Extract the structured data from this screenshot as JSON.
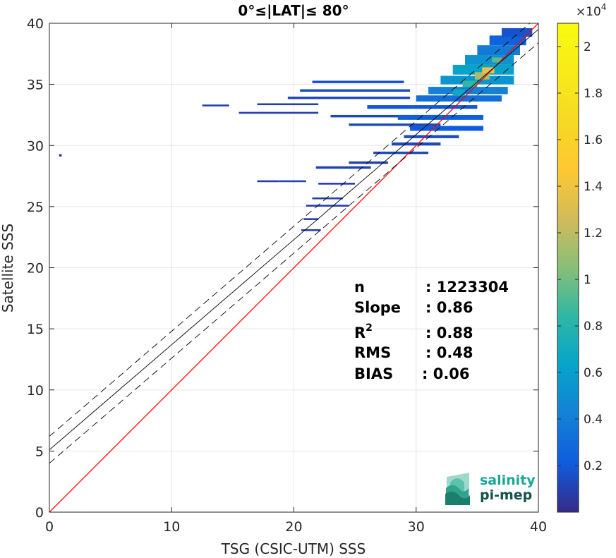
{
  "chart_data": {
    "type": "heatmap",
    "title": "0°≤|LAT|≤ 80°",
    "xlabel": "TSG (CSIC-UTM) SSS",
    "ylabel": "Satellite SSS",
    "xlim": [
      0,
      40
    ],
    "ylim": [
      0,
      40
    ],
    "xticks": [
      0,
      10,
      20,
      30,
      40
    ],
    "yticks": [
      0,
      5,
      10,
      15,
      20,
      25,
      30,
      35,
      40
    ],
    "grid": true,
    "colorbar": {
      "range": [
        0,
        21000
      ],
      "ticks": [
        0.2,
        0.4,
        0.6,
        0.8,
        1,
        1.2,
        1.4,
        1.6,
        1.8,
        2
      ],
      "tick_labels": [
        "0.2",
        "0.4",
        "0.6",
        "0.8",
        "1",
        "1.2",
        "1.4",
        "1.6",
        "1.8",
        "2"
      ],
      "exponent_base": "×10",
      "exponent_power": "4",
      "colormap": "parula"
    },
    "lines": [
      {
        "kind": "one-to-one",
        "color": "#ff0000",
        "slope": 1.0,
        "intercept": 0.0
      },
      {
        "kind": "regression",
        "color": "#000000",
        "style": "solid",
        "slope": 0.86,
        "intercept": 5.1
      },
      {
        "kind": "regression-upper",
        "color": "#000000",
        "style": "dashed",
        "slope": 0.86,
        "intercept": 6.2
      },
      {
        "kind": "regression-lower",
        "color": "#000000",
        "style": "dashed",
        "slope": 0.86,
        "intercept": 4.0
      }
    ],
    "density_cells": [
      {
        "x": 0.8,
        "y": 29.1,
        "w": 0.2,
        "h": 0.2,
        "level": 0.02
      },
      {
        "x": 17.0,
        "y": 27.0,
        "w": 1.8,
        "h": 0.15,
        "level": 0.03
      },
      {
        "x": 18.8,
        "y": 27.0,
        "w": 2.2,
        "h": 0.15,
        "level": 0.05
      },
      {
        "x": 20.8,
        "y": 23.9,
        "w": 1.2,
        "h": 0.15,
        "level": 0.04
      },
      {
        "x": 20.6,
        "y": 23.0,
        "w": 1.6,
        "h": 0.15,
        "level": 0.04
      },
      {
        "x": 21.0,
        "y": 25.0,
        "w": 3.5,
        "h": 0.15,
        "level": 0.04
      },
      {
        "x": 21.5,
        "y": 25.6,
        "w": 2.5,
        "h": 0.15,
        "level": 0.04
      },
      {
        "x": 22.0,
        "y": 26.8,
        "w": 3.0,
        "h": 0.15,
        "level": 0.04
      },
      {
        "x": 21.8,
        "y": 28.1,
        "w": 4.5,
        "h": 0.2,
        "level": 0.05
      },
      {
        "x": 24.5,
        "y": 28.5,
        "w": 3.2,
        "h": 0.2,
        "level": 0.05
      },
      {
        "x": 26.5,
        "y": 29.3,
        "w": 4.5,
        "h": 0.2,
        "level": 0.06
      },
      {
        "x": 28.0,
        "y": 30.0,
        "w": 4.0,
        "h": 0.25,
        "level": 0.06
      },
      {
        "x": 29.0,
        "y": 30.6,
        "w": 4.5,
        "h": 0.25,
        "level": 0.07
      },
      {
        "x": 12.5,
        "y": 33.2,
        "w": 2.2,
        "h": 0.15,
        "level": 0.05
      },
      {
        "x": 15.5,
        "y": 32.6,
        "w": 6.5,
        "h": 0.15,
        "level": 0.04
      },
      {
        "x": 17.0,
        "y": 33.3,
        "w": 5.0,
        "h": 0.15,
        "level": 0.04
      },
      {
        "x": 19.5,
        "y": 33.8,
        "w": 10.0,
        "h": 0.2,
        "level": 0.06
      },
      {
        "x": 20.5,
        "y": 34.4,
        "w": 9.0,
        "h": 0.2,
        "level": 0.07
      },
      {
        "x": 21.5,
        "y": 35.1,
        "w": 7.5,
        "h": 0.2,
        "level": 0.07
      },
      {
        "x": 23.0,
        "y": 32.3,
        "w": 9.0,
        "h": 0.2,
        "level": 0.06
      },
      {
        "x": 24.5,
        "y": 31.6,
        "w": 7.5,
        "h": 0.2,
        "level": 0.06
      },
      {
        "x": 26.0,
        "y": 33.0,
        "w": 9.0,
        "h": 0.3,
        "level": 0.09
      },
      {
        "x": 28.5,
        "y": 32.1,
        "w": 7.0,
        "h": 0.4,
        "level": 0.11
      },
      {
        "x": 29.5,
        "y": 31.2,
        "w": 6.0,
        "h": 0.4,
        "level": 0.1
      },
      {
        "x": 30.0,
        "y": 33.6,
        "w": 7.0,
        "h": 0.5,
        "level": 0.15
      },
      {
        "x": 31.0,
        "y": 34.2,
        "w": 6.5,
        "h": 0.6,
        "level": 0.2
      },
      {
        "x": 32.0,
        "y": 35.0,
        "w": 6.0,
        "h": 0.7,
        "level": 0.26
      },
      {
        "x": 33.0,
        "y": 35.8,
        "w": 5.0,
        "h": 0.8,
        "level": 0.3
      },
      {
        "x": 34.0,
        "y": 36.6,
        "w": 4.0,
        "h": 0.8,
        "level": 0.25
      },
      {
        "x": 35.0,
        "y": 37.4,
        "w": 3.5,
        "h": 0.8,
        "level": 0.18
      },
      {
        "x": 36.0,
        "y": 38.2,
        "w": 3.0,
        "h": 0.8,
        "level": 0.12
      },
      {
        "x": 37.0,
        "y": 38.9,
        "w": 2.5,
        "h": 0.7,
        "level": 0.08
      },
      {
        "x": 34.8,
        "y": 35.4,
        "w": 1.2,
        "h": 0.6,
        "level": 0.55
      },
      {
        "x": 35.4,
        "y": 35.9,
        "w": 1.0,
        "h": 0.5,
        "level": 0.65
      },
      {
        "x": 33.8,
        "y": 34.8,
        "w": 1.2,
        "h": 0.5,
        "level": 0.4
      },
      {
        "x": 33.0,
        "y": 34.1,
        "w": 1.0,
        "h": 0.5,
        "level": 0.32
      },
      {
        "x": 36.2,
        "y": 36.8,
        "w": 0.8,
        "h": 0.4,
        "level": 0.45
      }
    ],
    "stats": {
      "n": {
        "label": "n",
        "value": ": 1223304"
      },
      "slope": {
        "label": "Slope",
        "value": ": 0.86"
      },
      "r2": {
        "label": "R",
        "sup": "2",
        "value": ": 0.88"
      },
      "rms": {
        "label": "RMS",
        "value": ": 0.48"
      },
      "bias": {
        "label": "BIAS",
        "value": ": 0.06"
      }
    }
  },
  "logo": {
    "line1": "salinity",
    "line2": "pi-mep"
  }
}
